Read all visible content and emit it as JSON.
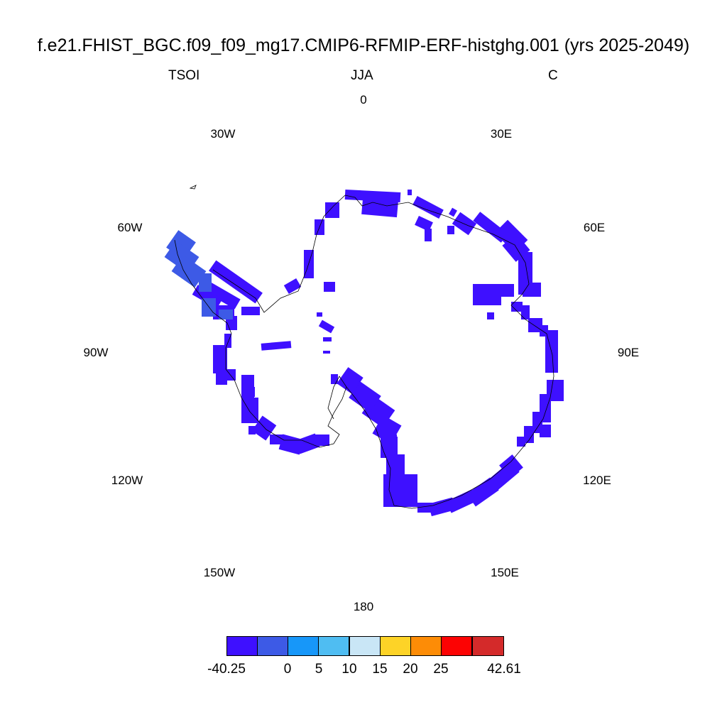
{
  "title": "f.e21.FHIST_BGC.f09_f09_mg17.CMIP6-RFMIP-ERF-histghg.001 (yrs 2025-2049)",
  "variable": "TSOI",
  "season": "JJA",
  "units": "C",
  "longitude_labels": [
    "0",
    "30E",
    "60E",
    "90E",
    "120E",
    "150E",
    "180",
    "150W",
    "120W",
    "90W",
    "60W",
    "30W"
  ],
  "colorbar": {
    "colors": [
      "#3e10ff",
      "#3d5ae6",
      "#1797f9",
      "#4fbdf2",
      "#c9e6f6",
      "#fdd327",
      "#fd8c06",
      "#fc0303",
      "#d42a2a"
    ],
    "labels": [
      "-40.25",
      "0",
      "5",
      "10",
      "15",
      "20",
      "25",
      "42.61"
    ]
  },
  "colors": {
    "main_fill": "#3e10ff",
    "peninsula_fill": "#3d5ae6",
    "coastline": "#000000"
  }
}
